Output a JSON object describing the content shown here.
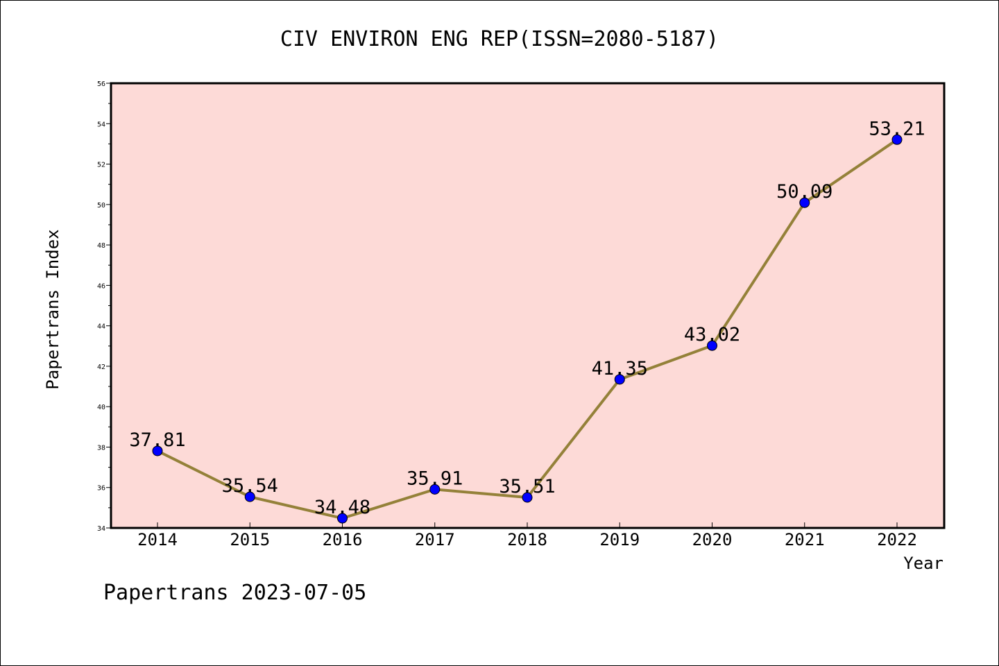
{
  "chart_data": {
    "type": "line",
    "title": "CIV ENVIRON ENG REP(ISSN=2080-5187)",
    "xlabel": "Year",
    "ylabel": "Papertrans Index",
    "categories": [
      "2014",
      "2015",
      "2016",
      "2017",
      "2018",
      "2019",
      "2020",
      "2021",
      "2022"
    ],
    "series": [
      {
        "values": [
          37.81,
          35.54,
          34.48,
          35.91,
          35.51,
          41.35,
          43.02,
          50.09,
          53.21
        ],
        "labels": [
          "37.81",
          "35.54",
          "34.48",
          "35.91",
          "35.51",
          "41.35",
          "43.02",
          "50.09",
          "53.21"
        ]
      }
    ],
    "ylim": [
      34,
      56
    ],
    "yticks": [
      "34",
      "36",
      "38",
      "40",
      "42",
      "44",
      "46",
      "48",
      "50",
      "52",
      "54",
      "56"
    ],
    "grid": false,
    "colors": {
      "plot_background": "#fddad7",
      "line": "#948139",
      "marker": "#0000ff"
    }
  },
  "footer": "Papertrans 2023-07-05"
}
